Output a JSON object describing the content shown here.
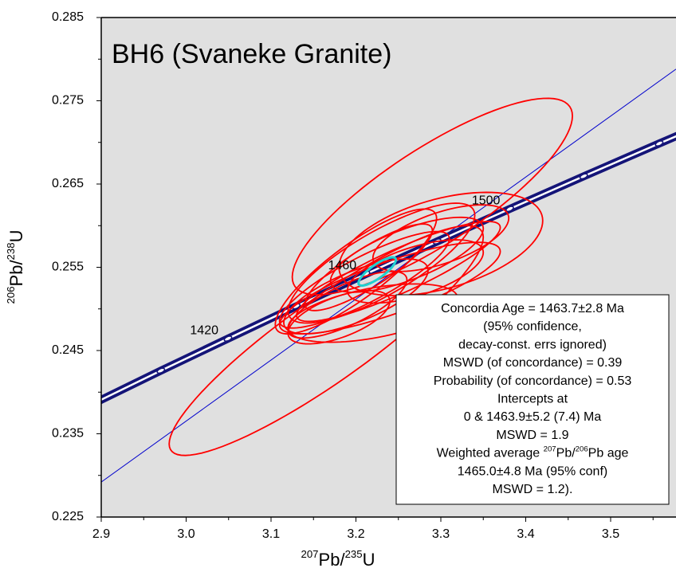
{
  "chart_data": {
    "type": "concordia",
    "title": "BH6 (Svaneke Granite)",
    "x_label": [
      {
        "text": "207",
        "sup": true
      },
      {
        "text": "Pb/"
      },
      {
        "text": "235",
        "sup": true
      },
      {
        "text": "U"
      }
    ],
    "y_label": [
      {
        "text": "206",
        "sup": true
      },
      {
        "text": "Pb/"
      },
      {
        "text": "238",
        "sup": true
      },
      {
        "text": "U"
      }
    ],
    "xlim": [
      2.9,
      3.577
    ],
    "ylim": [
      0.225,
      0.285
    ],
    "xticks": [
      2.9,
      {
        "value": 3,
        "label": "3.0"
      },
      3.1,
      3.2,
      3.3,
      3.4,
      3.5
    ],
    "yticks": [
      0.225,
      0.235,
      0.245,
      0.255,
      0.265,
      0.275,
      0.285
    ],
    "xticks_minor": [
      2.95,
      3.05,
      3.15,
      3.25,
      3.35,
      3.45,
      3.55
    ],
    "yticks_minor": [
      0.23,
      0.24,
      0.25,
      0.26,
      0.27,
      0.28
    ],
    "background": "#e0e0e0",
    "concordia": {
      "color": "#141478",
      "ages": [
        1380,
        1400,
        1420,
        1440,
        1460,
        1480,
        1500,
        1520,
        1540,
        1560
      ],
      "x": [
        2.8928,
        2.97024,
        3.0493,
        3.12975,
        3.21191,
        3.29571,
        3.38118,
        3.4683,
        3.5572,
        3.6479
      ],
      "y": [
        0.23873,
        0.24258,
        0.24643,
        0.25031,
        0.2542,
        0.2581,
        0.26201,
        0.26593,
        0.26987,
        0.27381
      ]
    },
    "age_labels": [
      1420,
      1460,
      1500
    ],
    "discordia": {
      "color": "#0000cc",
      "x": [
        2.9,
        3.577
      ],
      "y": [
        0.2292,
        0.2788
      ]
    },
    "ellipse_color": "#ff0000",
    "ellipses": [
      {
        "cx": 3.165,
        "cy": 0.2462,
        "sx": 0.185,
        "sy": 0.0138,
        "rho": 0.9
      },
      {
        "cx": 3.29,
        "cy": 0.2635,
        "sx": 0.165,
        "sy": 0.0118,
        "rho": 0.82
      },
      {
        "cx": 3.3,
        "cy": 0.2578,
        "sx": 0.12,
        "sy": 0.0062,
        "rho": 0.45
      },
      {
        "cx": 3.23,
        "cy": 0.2555,
        "sx": 0.11,
        "sy": 0.0072,
        "rho": 0.8
      },
      {
        "cx": 3.21,
        "cy": 0.2535,
        "sx": 0.1,
        "sy": 0.0058,
        "rho": 0.85
      },
      {
        "cx": 3.25,
        "cy": 0.2545,
        "sx": 0.12,
        "sy": 0.006,
        "rho": 0.88
      },
      {
        "cx": 3.2,
        "cy": 0.2515,
        "sx": 0.085,
        "sy": 0.0045,
        "rho": 0.7
      },
      {
        "cx": 3.22,
        "cy": 0.2495,
        "sx": 0.1,
        "sy": 0.0035,
        "rho": 0.5
      },
      {
        "cx": 3.24,
        "cy": 0.2525,
        "sx": 0.13,
        "sy": 0.0055,
        "rho": 0.8
      },
      {
        "cx": 3.19,
        "cy": 0.2505,
        "sx": 0.07,
        "sy": 0.004,
        "rho": 0.75
      },
      {
        "cx": 3.26,
        "cy": 0.2565,
        "sx": 0.09,
        "sy": 0.0045,
        "rho": 0.7
      },
      {
        "cx": 3.215,
        "cy": 0.255,
        "sx": 0.075,
        "sy": 0.0052,
        "rho": 0.85
      },
      {
        "cx": 3.2,
        "cy": 0.2545,
        "sx": 0.095,
        "sy": 0.0075,
        "rho": 0.85
      },
      {
        "cx": 3.27,
        "cy": 0.2545,
        "sx": 0.08,
        "sy": 0.0038,
        "rho": 0.6
      },
      {
        "cx": 3.18,
        "cy": 0.249,
        "sx": 0.06,
        "sy": 0.0032,
        "rho": 0.6
      },
      {
        "cx": 3.3,
        "cy": 0.2585,
        "sx": 0.08,
        "sy": 0.004,
        "rho": 0.6
      }
    ],
    "mean_ellipse": {
      "color": "#20d0d0",
      "cx": 3.225,
      "cy": 0.2545,
      "sx": 0.022,
      "sy": 0.0017,
      "rho": 0.82
    },
    "annotation_lines": [
      [
        {
          "text": "Concordia Age = 1463.7±2.8 Ma"
        }
      ],
      [
        {
          "text": "(95% confidence,"
        }
      ],
      [
        {
          "text": "decay-const. errs ignored)"
        }
      ],
      [
        {
          "text": "MSWD (of concordance) = 0.39"
        }
      ],
      [
        {
          "text": "Probability (of concordance) = 0.53"
        }
      ],
      [
        {
          "text": "Intercepts at"
        }
      ],
      [
        {
          "text": "0 & 1463.9±5.2 (7.4) Ma"
        }
      ],
      [
        {
          "text": "MSWD = 1.9"
        }
      ],
      [
        {
          "text": "Weighted average "
        },
        {
          "text": "207",
          "sup": true
        },
        {
          "text": "Pb/"
        },
        {
          "text": "206",
          "sup": true
        },
        {
          "text": "Pb age"
        }
      ],
      [
        {
          "text": "1465.0±4.8 Ma (95% conf)"
        }
      ],
      [
        {
          "text": "MSWD = 1.2)."
        }
      ]
    ]
  }
}
